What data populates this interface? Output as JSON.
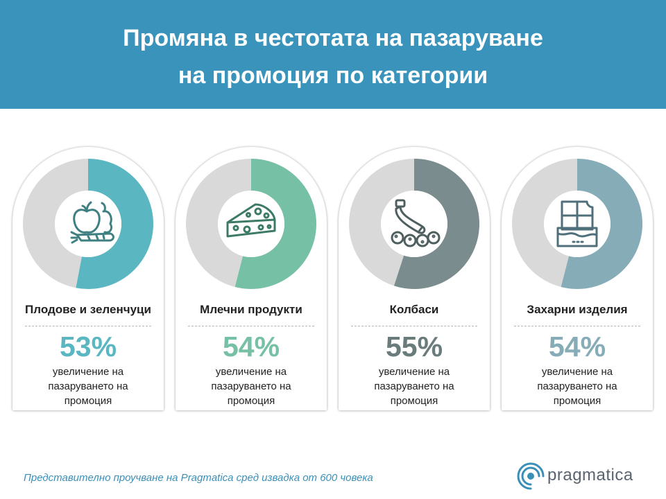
{
  "header": {
    "title_line1": "Промяна в честотата на пазаруване",
    "title_line2": "на промоция по категории",
    "background": "#3a93bb"
  },
  "chart_data": {
    "type": "donut",
    "remainder_color": "#d9d9d9",
    "categories": [
      {
        "name": "Плодове и зеленчуци",
        "value": 53,
        "value_label": "53%",
        "color": "#5ab7c2",
        "icon": "fruit-vegetables-icon"
      },
      {
        "name": "Млечни продукти",
        "value": 54,
        "value_label": "54%",
        "color": "#76c0a6",
        "icon": "cheese-icon"
      },
      {
        "name": "Колбаси",
        "value": 55,
        "value_label": "55%",
        "color": "#7a8c8d",
        "icon": "sausage-icon"
      },
      {
        "name": "Захарни изделия",
        "value": 54,
        "value_label": "54%",
        "color": "#85acb7",
        "icon": "chocolate-icon"
      }
    ],
    "description": [
      "увеличение на",
      "пазаруването на",
      "промоция"
    ]
  },
  "footer": {
    "note": "Представително проучване на Pragmatica сред извадка от 600 човека",
    "logo_text": "pragmatica",
    "logo_icon": "pragmatica-logo-icon"
  }
}
